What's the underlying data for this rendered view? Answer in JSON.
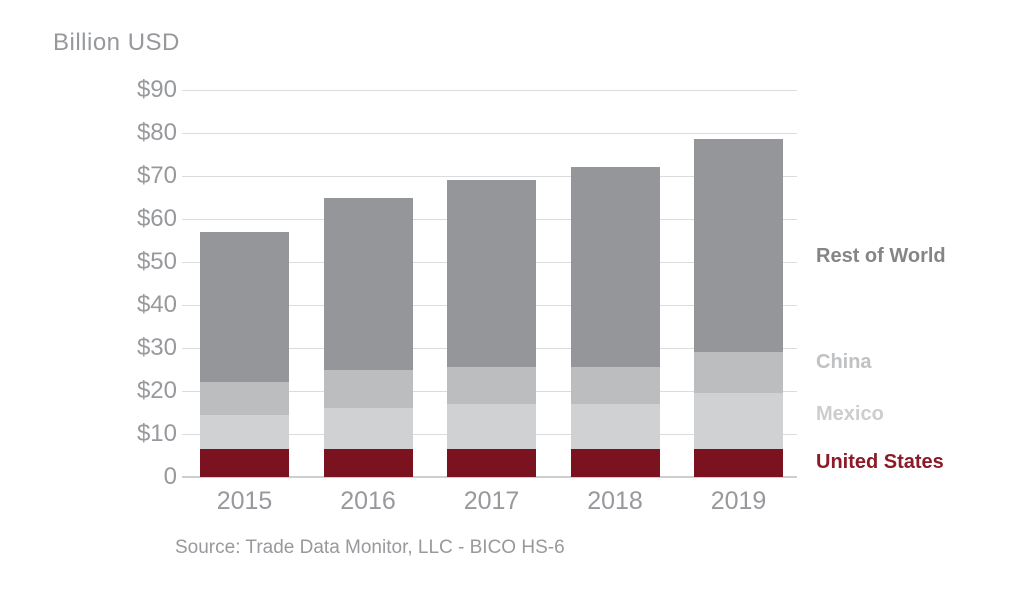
{
  "title": "Billion USD",
  "source_note": "Source: Trade Data Monitor, LLC - BICO HS-6",
  "colors": {
    "background": "#ffffff",
    "gridline": "#dbdcdd",
    "axis_baseline": "#cdced0",
    "axis_text": "#97999c",
    "title_text": "#96989b"
  },
  "chart_data": {
    "type": "bar",
    "stacked": true,
    "title": "Billion USD",
    "xlabel": "",
    "ylabel": "Billion USD",
    "ylim": [
      0,
      90
    ],
    "grid": true,
    "legend_position": "right",
    "categories": [
      "2015",
      "2016",
      "2017",
      "2018",
      "2019"
    ],
    "series": [
      {
        "name": "United States",
        "color": "#7a121f",
        "values": [
          6.5,
          6.5,
          6.5,
          6.5,
          6.5
        ]
      },
      {
        "name": "Mexico",
        "color": "#cfd1d3",
        "values": [
          8,
          9.5,
          10.5,
          10.5,
          13
        ]
      },
      {
        "name": "China",
        "color": "#bbbdbf",
        "values": [
          7.5,
          9,
          8.5,
          8.5,
          9.5
        ]
      },
      {
        "name": "Rest of World",
        "color": "#949699",
        "values": [
          35,
          40,
          43.5,
          46.5,
          49.5
        ]
      }
    ],
    "totals": [
      57,
      65,
      69,
      72,
      78.5
    ],
    "yticks": [
      {
        "label": "$90",
        "value": 90
      },
      {
        "label": "$80",
        "value": 80
      },
      {
        "label": "$70",
        "value": 70
      },
      {
        "label": "$60",
        "value": 60
      },
      {
        "label": "$50",
        "value": 50
      },
      {
        "label": "$40",
        "value": 40
      },
      {
        "label": "$30",
        "value": 30
      },
      {
        "label": "$20",
        "value": 20
      },
      {
        "label": "$10",
        "value": 10
      },
      {
        "label": "0",
        "value": 0
      }
    ]
  },
  "legend": [
    {
      "label": "Rest of World",
      "color": "#838587"
    },
    {
      "label": "China",
      "color": "#bfc1c3"
    },
    {
      "label": "Mexico",
      "color": "#cbcdcf"
    },
    {
      "label": "United States",
      "color": "#8c1a28"
    }
  ]
}
